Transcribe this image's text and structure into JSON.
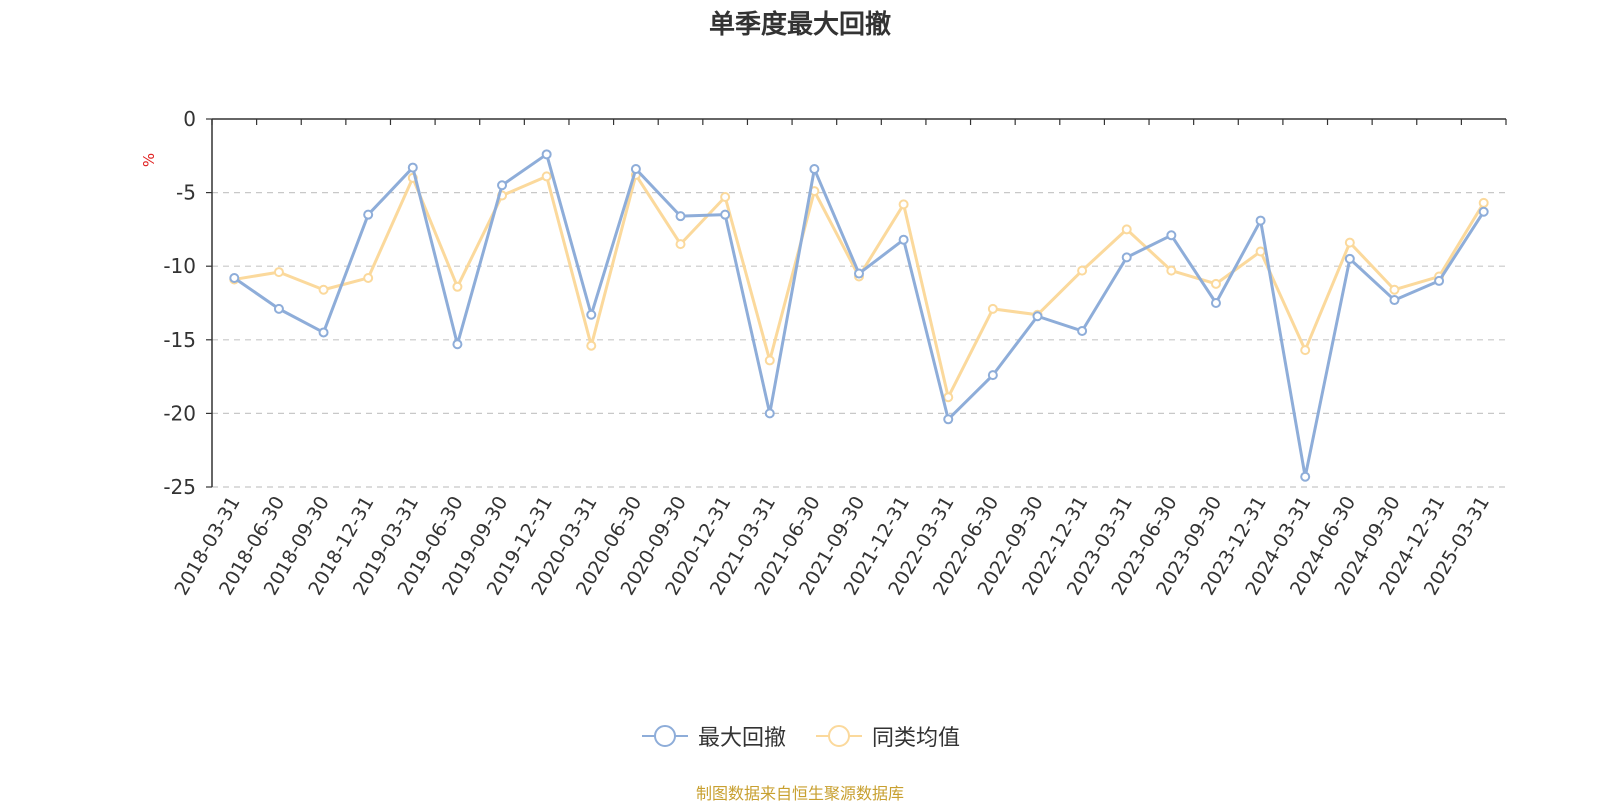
{
  "chart_data": {
    "type": "line",
    "title": "单季度最大回撤",
    "ylabel": "%",
    "xlabel": "",
    "ylim": [
      -25,
      0
    ],
    "yticks": [
      0,
      -5,
      -10,
      -15,
      -20,
      -25
    ],
    "grid": true,
    "legend_position": "bottom-center",
    "categories": [
      "2018-03-31",
      "2018-06-30",
      "2018-09-30",
      "2018-12-31",
      "2019-03-31",
      "2019-06-30",
      "2019-09-30",
      "2019-12-31",
      "2020-03-31",
      "2020-06-30",
      "2020-09-30",
      "2020-12-31",
      "2021-03-31",
      "2021-06-30",
      "2021-09-30",
      "2021-12-31",
      "2022-03-31",
      "2022-06-30",
      "2022-09-30",
      "2022-12-31",
      "2023-03-31",
      "2023-06-30",
      "2023-09-30",
      "2023-12-31",
      "2024-03-31",
      "2024-06-30",
      "2024-09-30",
      "2024-12-31",
      "2025-03-31"
    ],
    "series": [
      {
        "name": "最大回撤",
        "color": "#8eadd9",
        "values": [
          -10.8,
          -12.9,
          -14.5,
          -6.5,
          -3.3,
          -15.3,
          -4.5,
          -2.4,
          -13.3,
          -3.4,
          -6.6,
          -6.5,
          -20.0,
          -3.4,
          -10.5,
          -8.2,
          -20.4,
          -17.4,
          -13.4,
          -14.4,
          -9.4,
          -7.9,
          -12.5,
          -6.9,
          -24.3,
          -9.5,
          -12.3,
          -11.0,
          -6.3
        ]
      },
      {
        "name": "同类均值",
        "color": "#fbd99c",
        "values": [
          -10.9,
          -10.4,
          -11.6,
          -10.8,
          -4.0,
          -11.4,
          -5.2,
          -3.9,
          -15.4,
          -3.8,
          -8.5,
          -5.3,
          -16.4,
          -4.9,
          -10.7,
          -5.8,
          -18.9,
          -12.9,
          -13.3,
          -10.3,
          -7.5,
          -10.3,
          -11.2,
          -9.0,
          -15.7,
          -8.4,
          -11.6,
          -10.7,
          -5.7
        ]
      }
    ]
  },
  "credit": "制图数据来自恒生聚源数据库"
}
